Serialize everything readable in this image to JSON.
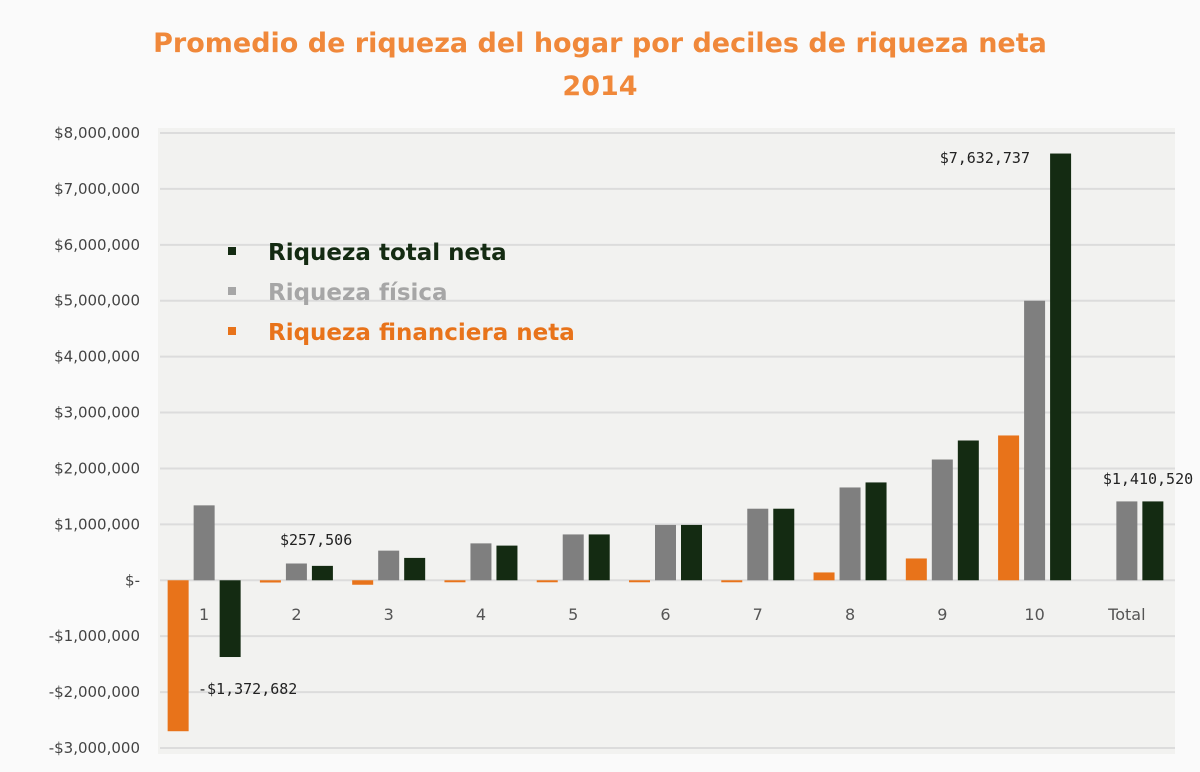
{
  "chart_data": {
    "type": "bar",
    "title": "Promedio de riqueza del hogar por deciles de riqueza neta",
    "subtitle": "2014",
    "xlabel": "",
    "ylabel": "",
    "categories": [
      "1",
      "2",
      "3",
      "4",
      "5",
      "6",
      "7",
      "8",
      "9",
      "10",
      "Total"
    ],
    "ylim": [
      -3000000,
      8000000
    ],
    "y_ticks": [
      8000000,
      7000000,
      6000000,
      5000000,
      4000000,
      3000000,
      2000000,
      1000000,
      0,
      -1000000,
      -2000000,
      -3000000
    ],
    "y_tick_labels": [
      "$8,000,000",
      "$7,000,000",
      "$6,000,000",
      "$5,000,000",
      "$4,000,000",
      "$3,000,000",
      "$2,000,000",
      "$1,000,000",
      "$-",
      "-$1,000,000",
      "-$2,000,000",
      "-$3,000,000"
    ],
    "grid": true,
    "legend_position": "top-left",
    "series": [
      {
        "name": "Riqueza financiera neta",
        "color": "#e8731a",
        "values": [
          -2700000,
          -40000,
          -80000,
          -30000,
          -15000,
          -15000,
          -20000,
          140000,
          390000,
          2590000,
          0
        ]
      },
      {
        "name": "Riqueza física",
        "color": "#7f7f7f",
        "values": [
          1340000,
          300000,
          530000,
          660000,
          820000,
          990000,
          1280000,
          1660000,
          2160000,
          5000000,
          1410520
        ]
      },
      {
        "name": "Riqueza total neta",
        "color": "#142b12",
        "values": [
          -1372682,
          257506,
          400000,
          620000,
          820000,
          990000,
          1280000,
          1750000,
          2500000,
          7632737,
          1410520
        ]
      }
    ],
    "legend_order": [
      "Riqueza total neta",
      "Riqueza física",
      "Riqueza financiera neta"
    ],
    "legend_colors": [
      "#142b12",
      "#a6a6a6",
      "#e8731a"
    ],
    "annotations": [
      {
        "text": "-$1,372,682",
        "category": "1",
        "series": "Riqueza total neta"
      },
      {
        "text": "$257,506",
        "category": "2",
        "series": "Riqueza total neta"
      },
      {
        "text": "$7,632,737",
        "category": "10",
        "series": "Riqueza total neta"
      },
      {
        "text": "$1,410,520",
        "category": "Total",
        "series": "Riqueza total neta"
      }
    ],
    "title_color": "#f0883a",
    "plot_background": "#f2f2f0",
    "grid_color": "#dcdcdc"
  }
}
